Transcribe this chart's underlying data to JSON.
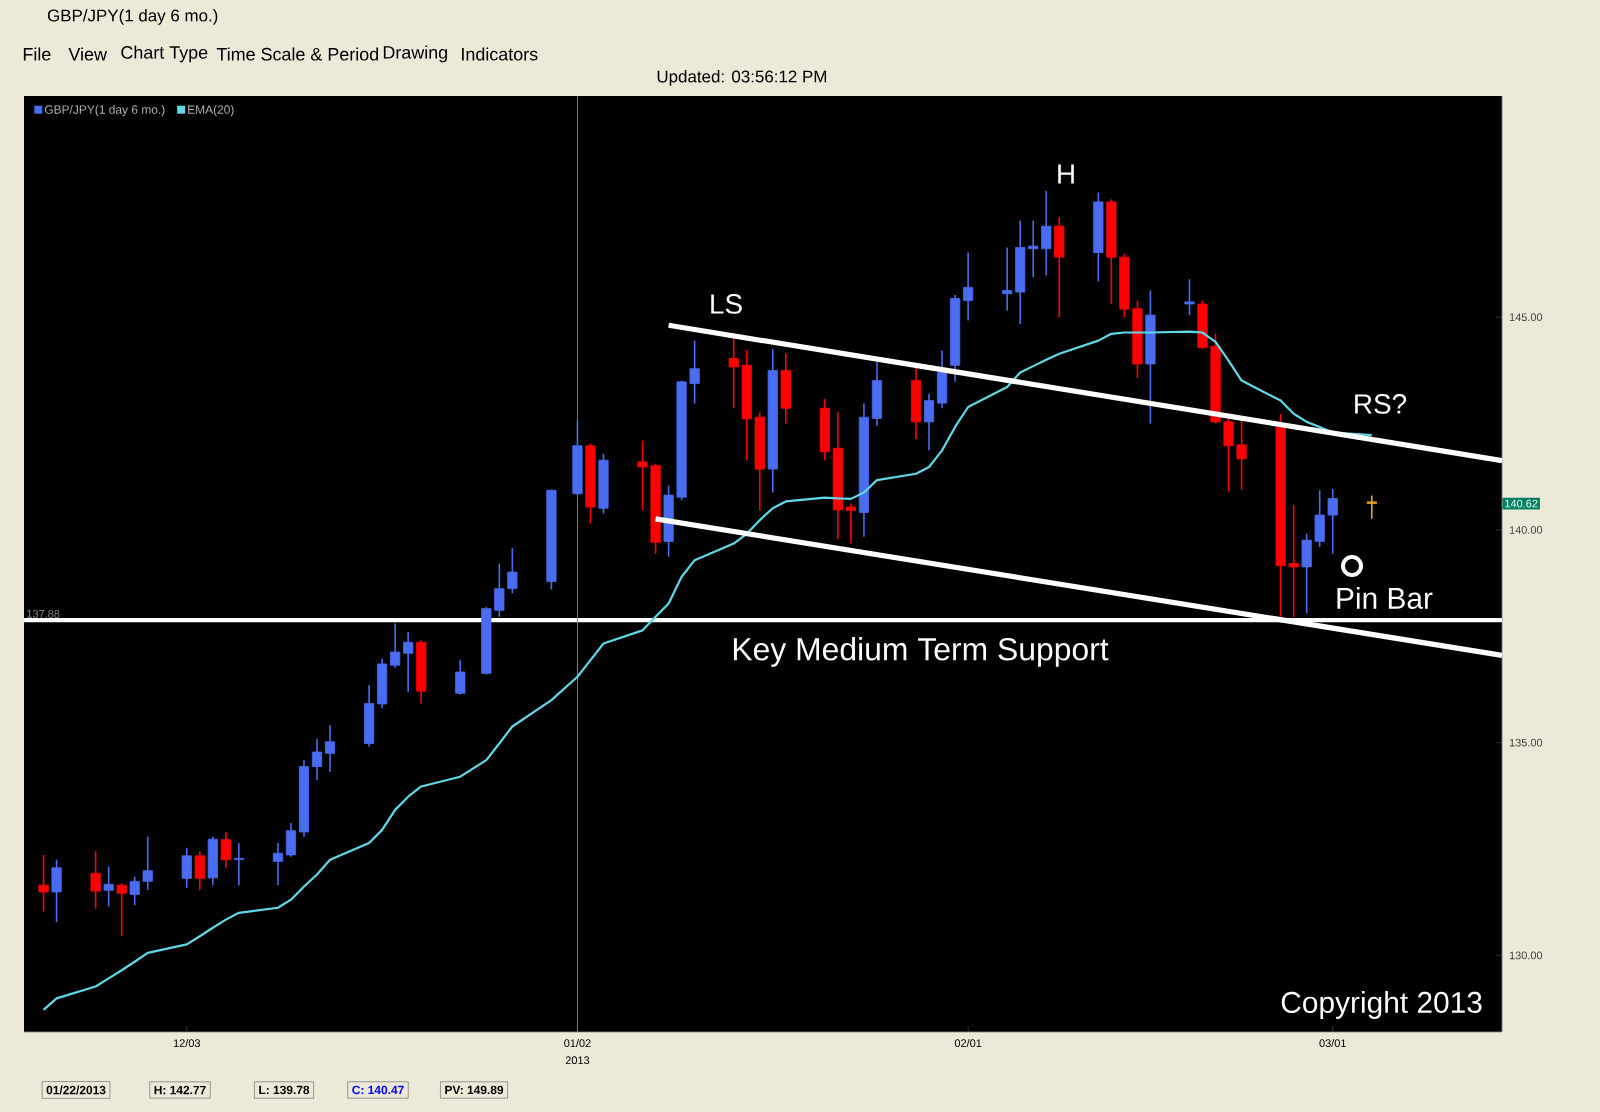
{
  "chart_data": {
    "type": "candlestick",
    "title": "GBP/JPY(1 day 6 mo.)",
    "x": [
      "2012-11-22",
      "2012-11-23",
      "2012-11-26",
      "2012-11-27",
      "2012-11-28",
      "2012-11-29",
      "2012-11-30",
      "2012-12-03",
      "2012-12-04",
      "2012-12-05",
      "2012-12-06",
      "2012-12-07",
      "2012-12-10",
      "2012-12-11",
      "2012-12-12",
      "2012-12-13",
      "2012-12-14",
      "2012-12-17",
      "2012-12-18",
      "2012-12-19",
      "2012-12-20",
      "2012-12-21",
      "2012-12-24",
      "2012-12-26",
      "2012-12-27",
      "2012-12-28",
      "2012-12-31",
      "2013-01-02",
      "2013-01-03",
      "2013-01-04",
      "2013-01-07",
      "2013-01-08",
      "2013-01-09",
      "2013-01-10",
      "2013-01-11",
      "2013-01-14",
      "2013-01-15",
      "2013-01-16",
      "2013-01-17",
      "2013-01-18",
      "2013-01-21",
      "2013-01-22",
      "2013-01-23",
      "2013-01-24",
      "2013-01-25",
      "2013-01-28",
      "2013-01-29",
      "2013-01-30",
      "2013-01-31",
      "2013-02-01",
      "2013-02-04",
      "2013-02-05",
      "2013-02-06",
      "2013-02-07",
      "2013-02-08",
      "2013-02-11",
      "2013-02-12",
      "2013-02-13",
      "2013-02-14",
      "2013-02-15",
      "2013-02-18",
      "2013-02-19",
      "2013-02-20",
      "2013-02-21",
      "2013-02-22",
      "2013-02-25",
      "2013-02-26",
      "2013-02-27",
      "2013-02-28",
      "2013-03-01",
      "2013-03-04"
    ],
    "xlim": [
      "2012-11-20T12:00",
      "2013-03-14"
    ],
    "xticks": [
      {
        "value": "2012-12-03",
        "label": "12/03"
      },
      {
        "value": "2013-01-02",
        "label": "01/02"
      },
      {
        "value": "2013-02-01",
        "label": "02/01"
      },
      {
        "value": "2013-03-01",
        "label": "03/01"
      }
    ],
    "ylim": [
      128.2,
      150.2
    ],
    "yticks": [
      {
        "value": 130,
        "label": "130.00"
      },
      {
        "value": 135,
        "label": "135.00"
      },
      {
        "value": 140,
        "label": "140.00"
      },
      {
        "value": 145,
        "label": "145.00"
      }
    ],
    "legend": "top left",
    "series": [
      {
        "name": "GBP/JPY(1 day 6 mo.)",
        "color": "#4a6cf0",
        "colors": [
          "#ff0000",
          "#4a6cf0",
          "#ff0000",
          "#4a6cf0",
          "#ff0000",
          "#4a6cf0",
          "#4a6cf0",
          "#4a6cf0",
          "#ff0000",
          "#4a6cf0",
          "#ff0000",
          "#4a6cf0",
          "#4a6cf0",
          "#4a6cf0",
          "#4a6cf0",
          "#4a6cf0",
          "#4a6cf0",
          "#4a6cf0",
          "#4a6cf0",
          "#4a6cf0",
          "#4a6cf0",
          "#ff0000",
          "#4a6cf0",
          "#4a6cf0",
          "#4a6cf0",
          "#4a6cf0",
          "#4a6cf0",
          "#4a6cf0",
          "#ff0000",
          "#4a6cf0",
          "#ff0000",
          "#ff0000",
          "#4a6cf0",
          "#4a6cf0",
          "#4a6cf0",
          "#ff0000",
          "#ff0000",
          "#ff0000",
          "#4a6cf0",
          "#ff0000",
          "#ff0000",
          "#ff0000",
          "#ff0000",
          "#4a6cf0",
          "#4a6cf0",
          "#ff0000",
          "#4a6cf0",
          "#4a6cf0",
          "#4a6cf0",
          "#4a6cf0",
          "#4a6cf0",
          "#4a6cf0",
          "#4a6cf0",
          "#4a6cf0",
          "#ff0000",
          "#4a6cf0",
          "#ff0000",
          "#ff0000",
          "#ff0000",
          "#4a6cf0",
          "#4a6cf0",
          "#ff0000",
          "#ff0000",
          "#ff0000",
          "#ff0000",
          "#ff0000",
          "#ff0000",
          "#4a6cf0",
          "#4a6cf0",
          "#4a6cf0",
          "#f0a020"
        ],
        "ohlc": [
          [
            131.65,
            132.36,
            131.03,
            131.49
          ],
          [
            131.49,
            132.25,
            130.78,
            132.06
          ],
          [
            131.93,
            132.45,
            131.1,
            131.51
          ],
          [
            131.53,
            132.09,
            131.15,
            131.67
          ],
          [
            131.65,
            131.7,
            130.45,
            131.46
          ],
          [
            131.43,
            131.85,
            131.18,
            131.74
          ],
          [
            131.74,
            132.79,
            131.54,
            131.99
          ],
          [
            131.81,
            132.53,
            131.59,
            132.34
          ],
          [
            132.34,
            132.44,
            131.54,
            131.81
          ],
          [
            131.82,
            132.79,
            131.65,
            132.73
          ],
          [
            132.72,
            132.9,
            132.06,
            132.25
          ],
          [
            132.25,
            132.64,
            131.65,
            132.28
          ],
          [
            132.21,
            132.64,
            131.65,
            132.4
          ],
          [
            132.36,
            133.11,
            132.32,
            132.93
          ],
          [
            132.9,
            134.59,
            132.79,
            134.44
          ],
          [
            134.44,
            135.09,
            134.12,
            134.78
          ],
          [
            134.75,
            135.41,
            134.31,
            135.02
          ],
          [
            134.98,
            136.35,
            134.91,
            135.92
          ],
          [
            135.91,
            136.97,
            135.81,
            136.85
          ],
          [
            136.82,
            137.8,
            136.76,
            137.13
          ],
          [
            137.1,
            137.6,
            136.19,
            137.36
          ],
          [
            137.36,
            137.41,
            135.92,
            136.21
          ],
          [
            136.16,
            136.94,
            136.13,
            136.66
          ],
          [
            136.63,
            138.19,
            136.6,
            138.15
          ],
          [
            138.11,
            139.21,
            137.96,
            138.62
          ],
          [
            138.62,
            139.57,
            138.51,
            139.01
          ],
          [
            138.79,
            140.95,
            138.6,
            140.93
          ],
          [
            140.85,
            142.57,
            140.82,
            141.98
          ],
          [
            141.98,
            142.03,
            140.15,
            140.54
          ],
          [
            140.51,
            141.79,
            140.38,
            141.64
          ],
          [
            141.6,
            142.1,
            140.46,
            141.48
          ],
          [
            141.51,
            141.56,
            139.44,
            139.71
          ],
          [
            139.73,
            141.04,
            139.37,
            140.82
          ],
          [
            140.77,
            143.51,
            140.7,
            143.48
          ],
          [
            143.44,
            144.45,
            142.97,
            143.79
          ],
          [
            144.03,
            144.64,
            142.86,
            143.83
          ],
          [
            143.87,
            144.22,
            141.64,
            142.61
          ],
          [
            142.65,
            142.76,
            140.46,
            141.43
          ],
          [
            141.43,
            144.25,
            140.88,
            143.75
          ],
          [
            143.75,
            144.14,
            142.5,
            142.86
          ],
          [
            142.86,
            143.08,
            141.64,
            141.84
          ],
          [
            141.92,
            142.77,
            139.78,
            140.47
          ],
          [
            140.54,
            140.62,
            139.68,
            140.46
          ],
          [
            140.41,
            142.97,
            139.84,
            142.65
          ],
          [
            142.62,
            143.95,
            142.45,
            143.51
          ],
          [
            143.51,
            143.83,
            142.13,
            142.54
          ],
          [
            142.54,
            143.2,
            141.87,
            143.04
          ],
          [
            142.98,
            144.22,
            142.86,
            143.7
          ],
          [
            143.87,
            145.52,
            143.48,
            145.44
          ],
          [
            145.39,
            146.52,
            144.92,
            145.7
          ],
          [
            145.55,
            146.64,
            145.16,
            145.63
          ],
          [
            145.59,
            147.27,
            144.84,
            146.64
          ],
          [
            146.61,
            147.27,
            145.94,
            146.67
          ],
          [
            146.61,
            147.97,
            145.98,
            147.14
          ],
          [
            147.14,
            147.35,
            145.0,
            146.41
          ],
          [
            146.52,
            147.93,
            145.84,
            147.71
          ],
          [
            147.71,
            147.77,
            145.31,
            146.41
          ],
          [
            146.41,
            146.49,
            145.0,
            145.19
          ],
          [
            145.2,
            145.39,
            143.58,
            143.9
          ],
          [
            143.9,
            145.63,
            142.5,
            145.05
          ],
          [
            145.31,
            145.89,
            145.05,
            145.36
          ],
          [
            145.31,
            145.39,
            144.26,
            144.29
          ],
          [
            144.32,
            144.61,
            142.5,
            142.54
          ],
          [
            142.54,
            142.73,
            140.9,
            141.98
          ],
          [
            142.0,
            142.61,
            140.95,
            141.67
          ],
          [
            142.42,
            142.73,
            137.96,
            139.16
          ],
          [
            139.21,
            140.59,
            137.96,
            139.13
          ],
          [
            139.13,
            139.91,
            138.04,
            139.76
          ],
          [
            139.73,
            140.93,
            139.6,
            140.35
          ],
          [
            140.35,
            140.96,
            139.44,
            140.74
          ],
          [
            140.66,
            140.81,
            140.26,
            140.62
          ]
        ]
      },
      {
        "name": "EMA(20)",
        "type": "line",
        "color": "#5fd8e8",
        "values": [
          128.72,
          128.99,
          129.27,
          129.46,
          129.65,
          129.85,
          130.06,
          130.26,
          130.45,
          130.65,
          130.84,
          131.0,
          131.12,
          131.31,
          131.62,
          131.9,
          132.25,
          132.64,
          132.95,
          133.42,
          133.73,
          133.97,
          134.2,
          134.59,
          134.98,
          135.38,
          136.0,
          136.55,
          136.94,
          137.33,
          137.64,
          137.96,
          138.27,
          138.9,
          139.29,
          139.68,
          139.91,
          140.23,
          140.51,
          140.67,
          140.76,
          140.74,
          140.73,
          140.88,
          141.17,
          141.32,
          141.48,
          141.87,
          142.42,
          142.89,
          143.36,
          143.7,
          143.85,
          144.0,
          144.14,
          144.45,
          144.61,
          144.64,
          144.64,
          144.64,
          144.66,
          144.64,
          144.42,
          143.98,
          143.51,
          143.04,
          142.73,
          142.54,
          142.42,
          142.29,
          142.23
        ]
      },
      {
        "type": "line",
        "color": "#ffffff",
        "x": [
          "2013-01-09",
          "2013-03-14"
        ],
        "values": [
          144.81,
          141.63
        ]
      },
      {
        "type": "line",
        "color": "#ffffff",
        "x": [
          "2013-01-08",
          "2013-03-14"
        ],
        "values": [
          140.26,
          137.05
        ]
      }
    ],
    "ref_lines": [
      {
        "axis": "y",
        "value": 137.88,
        "label": "137.88",
        "color": "#ffffff"
      },
      {
        "axis": "x",
        "value": "2013-01-02",
        "label": "2013",
        "color": "#808080"
      }
    ],
    "annotations": [
      "File",
      "View",
      "Chart Type",
      "Time Scale & Period",
      "Drawing",
      "Indicators",
      "Updated: 03:56:12 PM",
      "01/22/2013",
      "H: 142.77",
      "L: 139.78",
      "C: 140.47",
      "PV: 149.89",
      "Copyright 2013",
      "LS",
      "H",
      "RS?",
      "Pin Bar",
      "Key Medium Term Support",
      {
        "text": "140.62",
        "y": 140.62
      }
    ]
  }
}
